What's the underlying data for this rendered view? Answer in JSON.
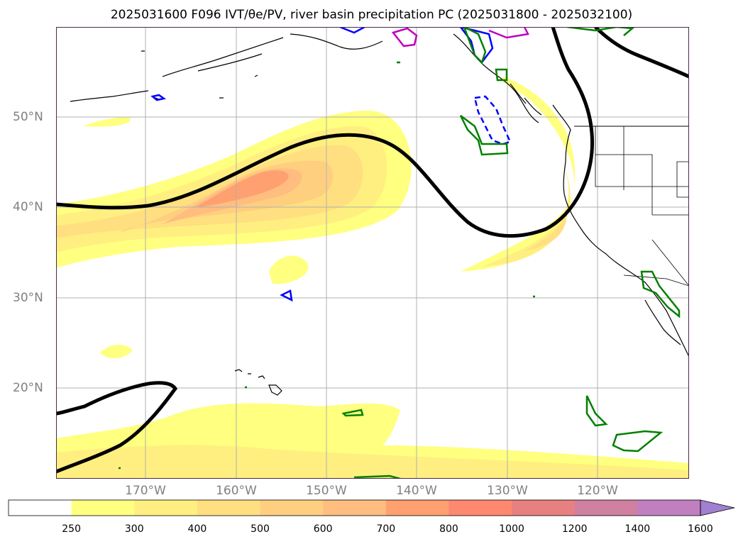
{
  "title": "2025031600 F096 IVT/θe/PV, river basin precipitation PC (2025031800 - 2025032100)",
  "lat_labels": [
    "50°N",
    "40°N",
    "30°N",
    "20°N"
  ],
  "lon_labels": [
    "170°W",
    "160°W",
    "150°W",
    "140°W",
    "130°W",
    "120°W"
  ],
  "colorbar": {
    "levels": [
      "250",
      "300",
      "400",
      "500",
      "600",
      "700",
      "800",
      "1000",
      "1200",
      "1400",
      "1600"
    ],
    "colors": [
      "#ffffff",
      "#ffff80",
      "#ffef80",
      "#ffdf80",
      "#ffcf80",
      "#ffbd80",
      "#ffa070",
      "#ff8870",
      "#e88080",
      "#d080a0",
      "#c080c0",
      "#a080d0"
    ],
    "extend": "max"
  },
  "colors": {
    "frame": "#4a2a4a",
    "grid": "#b0b0b0",
    "coast": "#000000",
    "pv_contour": "#000000",
    "precip_green": "#008000",
    "precip_blue": "#0000ff",
    "precip_magenta": "#c000c0"
  },
  "map_extent": {
    "lon": [
      -180,
      -110
    ],
    "lat": [
      10,
      60
    ]
  }
}
